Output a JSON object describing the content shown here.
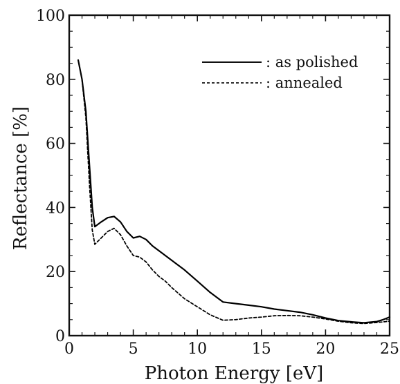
{
  "chart_data": {
    "type": "line",
    "title": "",
    "xlabel": "Photon Energy [eV]",
    "ylabel": "Reflectance [%]",
    "xlim": [
      0,
      25
    ],
    "ylim": [
      0,
      100
    ],
    "xticks": [
      0,
      5,
      10,
      15,
      20,
      25
    ],
    "yticks": [
      0,
      20,
      40,
      60,
      80,
      100
    ],
    "x_tick_labels": [
      "0",
      "5",
      "10",
      "15",
      "20",
      "25"
    ],
    "y_tick_labels": [
      "0",
      "20",
      "40",
      "60",
      "80",
      "100"
    ],
    "grid": false,
    "legend_position": "top-right",
    "series": [
      {
        "name": ": as polished",
        "style": "solid",
        "color": "#000000",
        "points": [
          [
            0.7,
            86
          ],
          [
            1.0,
            80
          ],
          [
            1.3,
            70
          ],
          [
            1.6,
            52
          ],
          [
            1.8,
            40
          ],
          [
            2.0,
            34
          ],
          [
            2.5,
            35.5
          ],
          [
            3.0,
            36.8
          ],
          [
            3.5,
            37.2
          ],
          [
            4.0,
            35.5
          ],
          [
            4.5,
            32.5
          ],
          [
            5.0,
            30.5
          ],
          [
            5.5,
            31
          ],
          [
            6.0,
            30
          ],
          [
            6.5,
            28
          ],
          [
            7.0,
            26.5
          ],
          [
            8.0,
            23.5
          ],
          [
            9.0,
            20.5
          ],
          [
            10.0,
            17
          ],
          [
            11.0,
            13.5
          ],
          [
            12.0,
            10.5
          ],
          [
            13.0,
            10
          ],
          [
            14.0,
            9.5
          ],
          [
            15.0,
            9
          ],
          [
            16.0,
            8.3
          ],
          [
            17.0,
            7.8
          ],
          [
            18.0,
            7.3
          ],
          [
            19.0,
            6.5
          ],
          [
            20.0,
            5.5
          ],
          [
            21.0,
            4.7
          ],
          [
            22.0,
            4.3
          ],
          [
            23.0,
            4.0
          ],
          [
            24.0,
            4.4
          ],
          [
            24.5,
            5.0
          ],
          [
            25.0,
            5.8
          ]
        ]
      },
      {
        "name": ": annealed",
        "style": "dashed",
        "color": "#000000",
        "points": [
          [
            1.0,
            80
          ],
          [
            1.3,
            68
          ],
          [
            1.6,
            46
          ],
          [
            1.8,
            33
          ],
          [
            2.0,
            28.5
          ],
          [
            2.5,
            30.5
          ],
          [
            3.0,
            32.5
          ],
          [
            3.5,
            33.5
          ],
          [
            4.0,
            31.5
          ],
          [
            4.5,
            28
          ],
          [
            5.0,
            25
          ],
          [
            5.5,
            24.5
          ],
          [
            6.0,
            23
          ],
          [
            6.5,
            20.5
          ],
          [
            7.0,
            18.5
          ],
          [
            7.5,
            17
          ],
          [
            8.0,
            15
          ],
          [
            9.0,
            11.5
          ],
          [
            10.0,
            9
          ],
          [
            11.0,
            6.5
          ],
          [
            12.0,
            4.8
          ],
          [
            13.0,
            5
          ],
          [
            14.0,
            5.5
          ],
          [
            15.0,
            5.8
          ],
          [
            16.0,
            6.2
          ],
          [
            17.0,
            6.3
          ],
          [
            18.0,
            6.2
          ],
          [
            19.0,
            5.8
          ],
          [
            20.0,
            5.2
          ],
          [
            21.0,
            4.5
          ],
          [
            22.0,
            4.0
          ],
          [
            23.0,
            3.8
          ],
          [
            24.0,
            4.1
          ],
          [
            25.0,
            4.5
          ]
        ]
      }
    ]
  }
}
